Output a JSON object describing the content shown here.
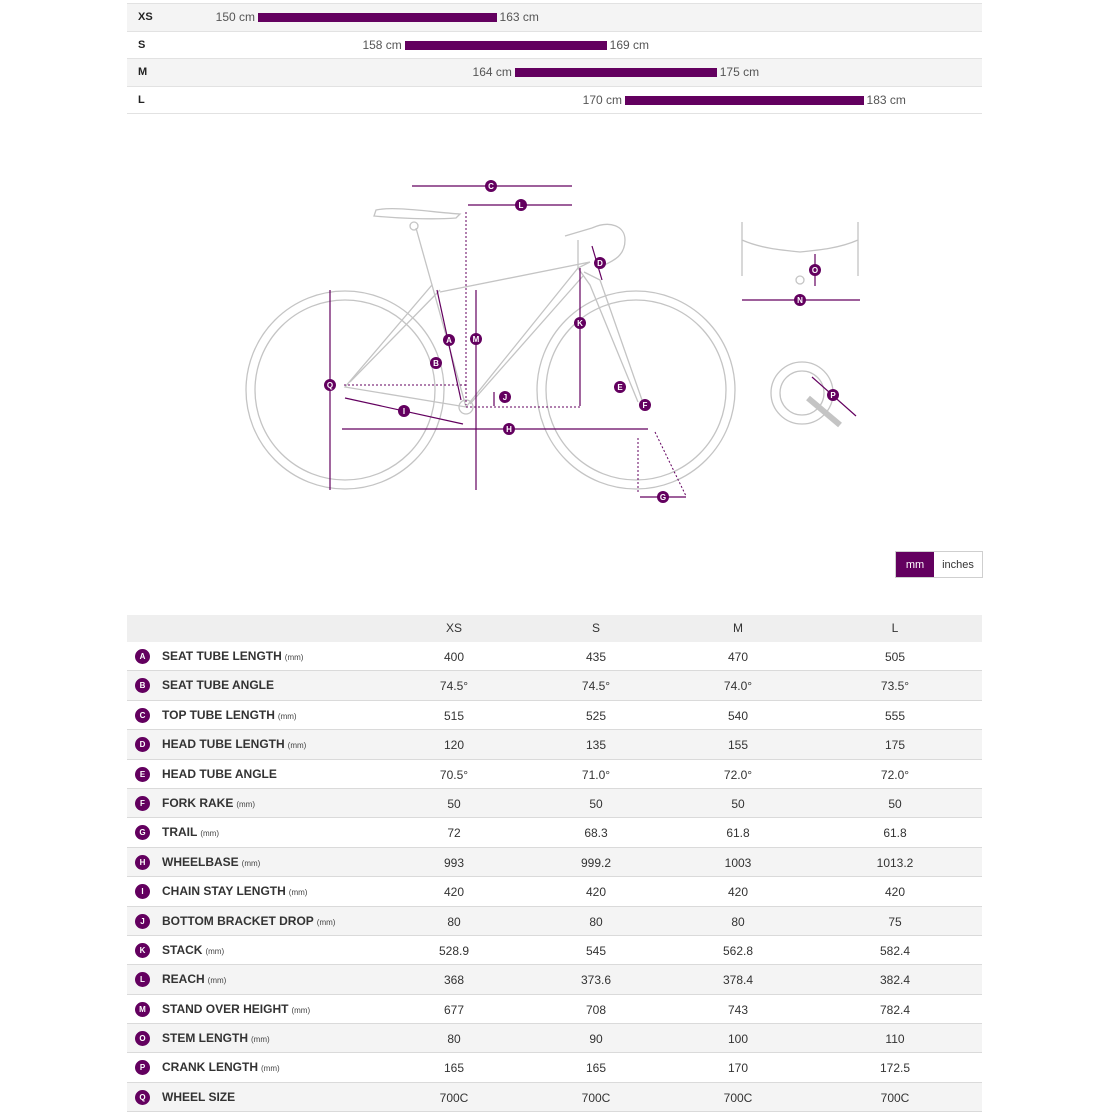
{
  "size_chart": [
    {
      "size": "XS",
      "min": "150 cm",
      "max": "163 cm",
      "min_cm": 150,
      "max_cm": 163
    },
    {
      "size": "S",
      "min": "158 cm",
      "max": "169 cm",
      "min_cm": 158,
      "max_cm": 169
    },
    {
      "size": "M",
      "min": "164 cm",
      "max": "175 cm",
      "min_cm": 164,
      "max_cm": 175
    },
    {
      "size": "L",
      "min": "170 cm",
      "max": "183 cm",
      "min_cm": 170,
      "max_cm": 183
    }
  ],
  "diagram_labels": [
    "A",
    "B",
    "C",
    "D",
    "E",
    "F",
    "G",
    "H",
    "I",
    "J",
    "K",
    "L",
    "M",
    "N",
    "O",
    "P",
    "Q"
  ],
  "unit_toggle": {
    "mm": "mm",
    "inches": "inches"
  },
  "table": {
    "columns": [
      "XS",
      "S",
      "M",
      "L"
    ],
    "rows": [
      {
        "key": "A",
        "name": "SEAT TUBE LENGTH",
        "unit": "(mm)",
        "values": [
          "400",
          "435",
          "470",
          "505"
        ]
      },
      {
        "key": "B",
        "name": "SEAT TUBE ANGLE",
        "unit": "",
        "values": [
          "74.5°",
          "74.5°",
          "74.0°",
          "73.5°"
        ]
      },
      {
        "key": "C",
        "name": "TOP TUBE LENGTH",
        "unit": "(mm)",
        "values": [
          "515",
          "525",
          "540",
          "555"
        ]
      },
      {
        "key": "D",
        "name": "HEAD TUBE LENGTH",
        "unit": "(mm)",
        "values": [
          "120",
          "135",
          "155",
          "175"
        ]
      },
      {
        "key": "E",
        "name": "HEAD TUBE ANGLE",
        "unit": "",
        "values": [
          "70.5°",
          "71.0°",
          "72.0°",
          "72.0°"
        ]
      },
      {
        "key": "F",
        "name": "FORK RAKE",
        "unit": "(mm)",
        "values": [
          "50",
          "50",
          "50",
          "50"
        ]
      },
      {
        "key": "G",
        "name": "TRAIL",
        "unit": "(mm)",
        "values": [
          "72",
          "68.3",
          "61.8",
          "61.8"
        ]
      },
      {
        "key": "H",
        "name": "WHEELBASE",
        "unit": "(mm)",
        "values": [
          "993",
          "999.2",
          "1003",
          "1013.2"
        ]
      },
      {
        "key": "I",
        "name": "CHAIN STAY LENGTH",
        "unit": "(mm)",
        "values": [
          "420",
          "420",
          "420",
          "420"
        ]
      },
      {
        "key": "J",
        "name": "BOTTOM BRACKET DROP",
        "unit": "(mm)",
        "values": [
          "80",
          "80",
          "80",
          "75"
        ]
      },
      {
        "key": "K",
        "name": "STACK",
        "unit": "(mm)",
        "values": [
          "528.9",
          "545",
          "562.8",
          "582.4"
        ]
      },
      {
        "key": "L",
        "name": "REACH",
        "unit": "(mm)",
        "values": [
          "368",
          "373.6",
          "378.4",
          "382.4"
        ]
      },
      {
        "key": "M",
        "name": "STAND OVER HEIGHT",
        "unit": "(mm)",
        "values": [
          "677",
          "708",
          "743",
          "782.4"
        ]
      },
      {
        "key": "O",
        "name": "STEM LENGTH",
        "unit": "(mm)",
        "values": [
          "80",
          "90",
          "100",
          "110"
        ]
      },
      {
        "key": "P",
        "name": "CRANK LENGTH",
        "unit": "(mm)",
        "values": [
          "165",
          "165",
          "170",
          "172.5"
        ]
      },
      {
        "key": "Q",
        "name": "WHEEL SIZE",
        "unit": "",
        "values": [
          "700C",
          "700C",
          "700C",
          "700C"
        ]
      }
    ]
  },
  "colors": {
    "accent": "#63005f",
    "frame_line": "#bdbdbd"
  }
}
